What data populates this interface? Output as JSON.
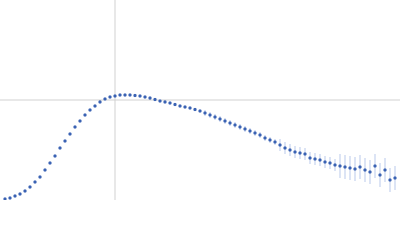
{
  "chart_data": {
    "type": "scatter",
    "xlim": [
      0,
      400
    ],
    "ylim": [
      0,
      200
    ],
    "crosshair": {
      "x": 115,
      "y": 100
    },
    "series": [
      {
        "color": "#3a62b3",
        "error_color": "#a9bde6",
        "x": [
          5,
          10,
          15,
          20,
          25,
          30,
          35,
          40,
          45,
          50,
          55,
          60,
          65,
          70,
          75,
          80,
          85,
          90,
          95,
          100,
          105,
          110,
          115,
          120,
          125,
          130,
          135,
          140,
          145,
          150,
          155,
          160,
          165,
          170,
          175,
          180,
          185,
          190,
          195,
          200,
          205,
          210,
          215,
          220,
          225,
          230,
          235,
          240,
          245,
          250,
          255,
          260,
          265,
          270,
          275,
          280,
          285,
          290,
          295,
          300,
          305,
          310,
          315,
          320,
          325,
          330,
          335,
          340,
          345,
          350,
          355,
          360,
          365,
          370,
          375,
          380,
          385,
          390,
          395
        ],
        "values": [
          1,
          2,
          4,
          6,
          9,
          13,
          18,
          23,
          30,
          37,
          44,
          52,
          59,
          66,
          73,
          79,
          85,
          90,
          94,
          98,
          101,
          103,
          104,
          105,
          105,
          105,
          104.5,
          104,
          103,
          102,
          100.5,
          99,
          98,
          97,
          95.5,
          94,
          93,
          92,
          90.5,
          89,
          87,
          85,
          83,
          81,
          79,
          77,
          75,
          73,
          71,
          69,
          67,
          65,
          62,
          60,
          58,
          55,
          52,
          50,
          48,
          47,
          46,
          42,
          41,
          40,
          38,
          37,
          35,
          34,
          33,
          32,
          31,
          33,
          30,
          28,
          34,
          25,
          30,
          20,
          22
        ],
        "errors": [
          0.5,
          0.5,
          0.5,
          0.5,
          0.5,
          0.5,
          0.5,
          0.5,
          0.5,
          0.5,
          0.5,
          0.5,
          0.5,
          0.5,
          0.5,
          0.5,
          0.5,
          0.5,
          0.5,
          0.5,
          1,
          1,
          1,
          1,
          1,
          1,
          1,
          1,
          1,
          1,
          1,
          1,
          1,
          1,
          1,
          1,
          1,
          1,
          1,
          1,
          3,
          3,
          3,
          3,
          3,
          3,
          3,
          3,
          3,
          3,
          3,
          3,
          3,
          3,
          3,
          6,
          6,
          6,
          6,
          6,
          6,
          6,
          6,
          6,
          6,
          6,
          6,
          12,
          12,
          12,
          12,
          12,
          12,
          12,
          12,
          12,
          12,
          12,
          12
        ]
      }
    ]
  }
}
